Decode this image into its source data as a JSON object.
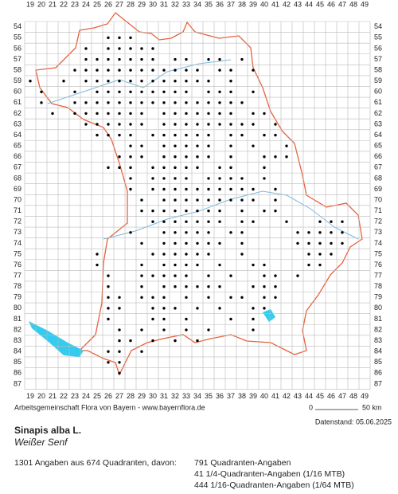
{
  "map": {
    "columns": [
      19,
      20,
      21,
      22,
      23,
      24,
      25,
      26,
      27,
      28,
      29,
      30,
      31,
      32,
      33,
      34,
      35,
      36,
      37,
      38,
      39,
      40,
      41,
      42,
      43,
      44,
      45,
      46,
      47,
      48,
      49
    ],
    "rows": [
      54,
      55,
      56,
      57,
      58,
      59,
      60,
      61,
      62,
      63,
      64,
      65,
      66,
      67,
      68,
      69,
      70,
      71,
      72,
      73,
      74,
      75,
      76,
      77,
      78,
      79,
      80,
      81,
      82,
      83,
      84,
      85,
      86,
      87
    ],
    "occurrences": [
      {
        "row": 55,
        "cols": [
          26,
          27,
          28
        ]
      },
      {
        "row": 56,
        "cols": [
          24,
          26,
          27,
          28,
          29,
          30
        ]
      },
      {
        "row": 57,
        "cols": [
          24,
          25,
          26,
          27,
          28,
          29,
          30,
          32,
          33,
          35,
          36,
          38
        ]
      },
      {
        "row": 58,
        "cols": [
          23,
          24,
          25,
          26,
          27,
          28,
          29,
          30,
          31,
          32,
          33,
          34,
          36,
          37,
          39
        ]
      },
      {
        "row": 59,
        "cols": [
          19,
          22,
          24,
          25,
          26,
          27,
          28,
          29,
          30,
          31,
          32,
          33,
          34,
          35,
          37
        ]
      },
      {
        "row": 60,
        "cols": [
          20,
          23,
          25,
          26,
          27,
          28,
          29,
          30,
          31,
          32,
          33,
          35,
          36,
          37,
          39
        ]
      },
      {
        "row": 61,
        "cols": [
          20,
          23,
          24,
          25,
          26,
          27,
          28,
          29,
          30,
          31,
          32,
          33,
          34,
          35,
          36,
          37,
          38
        ]
      },
      {
        "row": 62,
        "cols": [
          21,
          23,
          24,
          25,
          26,
          27,
          28,
          29,
          31,
          32,
          33,
          34,
          35,
          36,
          37,
          39,
          40
        ]
      },
      {
        "row": 63,
        "cols": [
          24,
          25,
          26,
          27,
          28,
          29,
          31,
          32,
          33,
          34,
          35,
          36,
          37,
          38,
          39,
          41
        ]
      },
      {
        "row": 64,
        "cols": [
          25,
          26,
          27,
          28,
          30,
          31,
          32,
          33,
          34,
          35,
          37,
          38,
          40,
          41
        ]
      },
      {
        "row": 65,
        "cols": [
          28,
          29,
          31,
          32,
          33,
          34,
          35,
          37,
          39,
          42
        ]
      },
      {
        "row": 66,
        "cols": [
          27,
          28,
          29,
          31,
          32,
          33,
          34,
          35,
          37,
          40,
          41,
          42
        ]
      },
      {
        "row": 67,
        "cols": [
          26,
          27,
          28,
          30,
          31,
          32,
          33,
          34,
          36,
          37,
          40
        ]
      },
      {
        "row": 68,
        "cols": [
          28,
          30,
          31,
          32,
          33,
          35,
          36,
          37,
          38,
          40
        ]
      },
      {
        "row": 69,
        "cols": [
          28,
          30,
          31,
          32,
          33,
          34,
          35,
          36,
          37,
          38,
          39,
          41
        ]
      },
      {
        "row": 70,
        "cols": [
          29,
          31,
          32,
          33,
          34,
          35,
          36,
          37,
          38,
          39,
          41
        ]
      },
      {
        "row": 71,
        "cols": [
          29,
          30,
          31,
          32,
          33,
          34,
          35,
          36,
          38,
          40,
          41
        ]
      },
      {
        "row": 72,
        "cols": [
          30,
          31,
          32,
          33,
          34,
          35,
          36,
          38,
          39,
          42,
          45,
          46,
          47
        ]
      },
      {
        "row": 73,
        "cols": [
          28,
          31,
          32,
          33,
          34,
          35,
          37,
          38,
          43,
          44,
          45,
          46,
          47
        ]
      },
      {
        "row": 74,
        "cols": [
          29,
          31,
          32,
          33,
          34,
          35,
          36,
          38,
          43,
          44,
          45,
          46,
          47
        ]
      },
      {
        "row": 75,
        "cols": [
          25,
          30,
          31,
          32,
          33,
          34,
          35,
          38,
          44,
          45,
          46
        ]
      },
      {
        "row": 76,
        "cols": [
          25,
          29,
          31,
          32,
          33,
          34,
          36,
          39,
          40,
          44,
          45
        ]
      },
      {
        "row": 77,
        "cols": [
          26,
          29,
          30,
          31,
          32,
          33,
          35,
          37,
          40,
          41,
          43
        ]
      },
      {
        "row": 78,
        "cols": [
          26,
          29,
          31,
          32,
          33,
          34,
          35,
          36,
          39,
          40,
          41
        ]
      },
      {
        "row": 79,
        "cols": [
          26,
          27,
          29,
          30,
          31,
          33,
          35,
          37,
          38,
          40,
          41
        ]
      },
      {
        "row": 80,
        "cols": [
          26,
          27,
          30,
          31,
          32,
          34,
          36,
          39,
          40
        ]
      },
      {
        "row": 81,
        "cols": [
          26,
          30,
          31,
          33,
          37,
          39
        ]
      },
      {
        "row": 82,
        "cols": [
          27,
          29,
          31,
          33,
          35,
          39
        ]
      },
      {
        "row": 83,
        "cols": [
          27,
          28,
          30,
          32,
          34
        ]
      },
      {
        "row": 84,
        "cols": [
          26,
          27,
          29
        ]
      },
      {
        "row": 85,
        "cols": [
          26,
          27
        ]
      },
      {
        "row": 86,
        "cols": [
          27
        ]
      }
    ]
  },
  "footer": {
    "credit": "Arbeitsgemeinschaft Flora von Bayern - www.bayernflora.de",
    "scale_start": "0",
    "scale_end": "50 km",
    "date": "Datenstand: 05.06.2025"
  },
  "species": {
    "name": "Sinapis alba L.",
    "common_name": "Weißer Senf"
  },
  "summary": {
    "total": "1301 Angaben aus 674 Quadranten, davon:",
    "lines": [
      "791 Quadranten-Angaben",
      "41 1/4-Quadranten-Angaben (1/16 MTB)",
      "444 1/16-Quadranten-Angaben (1/64 MTB)"
    ]
  }
}
